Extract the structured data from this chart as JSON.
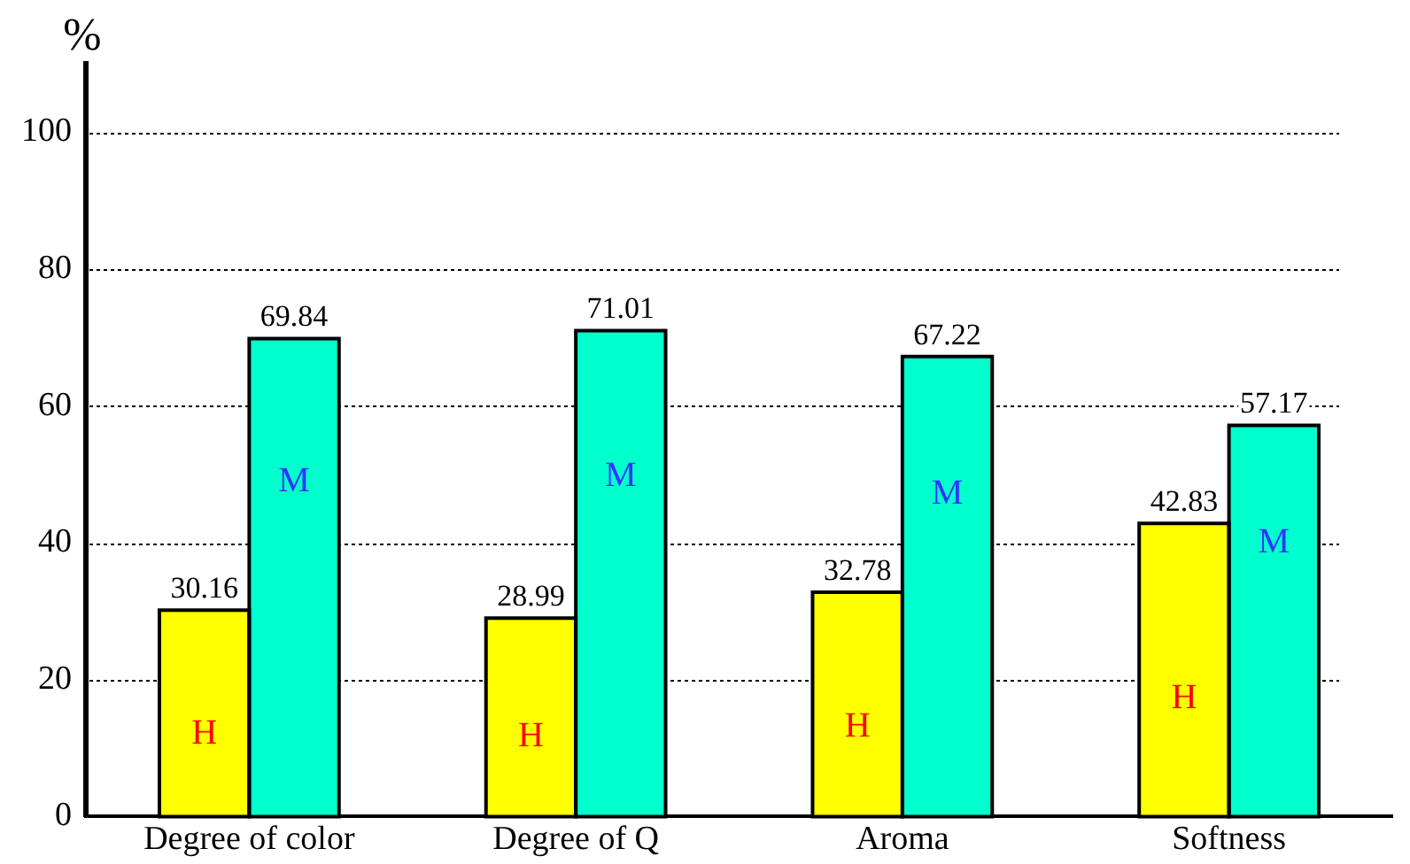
{
  "chart_data": {
    "type": "bar",
    "ylabel": "%",
    "categories": [
      "Degree of color",
      "Degree of Q",
      "Aroma",
      "Softness"
    ],
    "series": [
      {
        "name": "H",
        "color": "#ffff00",
        "values": [
          30.16,
          28.99,
          32.78,
          42.83
        ]
      },
      {
        "name": "M",
        "color": "#00ffcc",
        "values": [
          69.84,
          71.01,
          67.22,
          57.17
        ]
      }
    ],
    "ylim": [
      0,
      110
    ],
    "yticks": [
      0,
      20,
      40,
      60,
      80,
      100
    ],
    "grid": "y",
    "data_labels": true,
    "legend": false
  }
}
